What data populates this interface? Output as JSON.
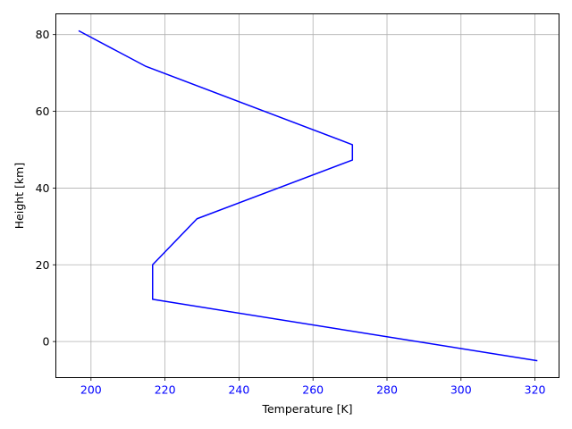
{
  "chart_data": {
    "type": "line",
    "title": "",
    "xlabel": "Temperature [K]",
    "ylabel": "Height [km]",
    "xlim": [
      190.5,
      326.5
    ],
    "ylim": [
      -9.4,
      85.4
    ],
    "grid": true,
    "x_ticks": [
      200,
      220,
      240,
      260,
      280,
      300,
      320
    ],
    "y_ticks": [
      0,
      20,
      40,
      60,
      80
    ],
    "x_tick_color": "#0000ff",
    "y_tick_color": "#000000",
    "series": [
      {
        "color": "#0000ff",
        "x": [
          320.65,
          216.65,
          216.65,
          228.65,
          270.65,
          270.65,
          214.65,
          196.65
        ],
        "y": [
          -5,
          11,
          20,
          32,
          47.3,
          51.3,
          71.8,
          81
        ]
      }
    ]
  }
}
